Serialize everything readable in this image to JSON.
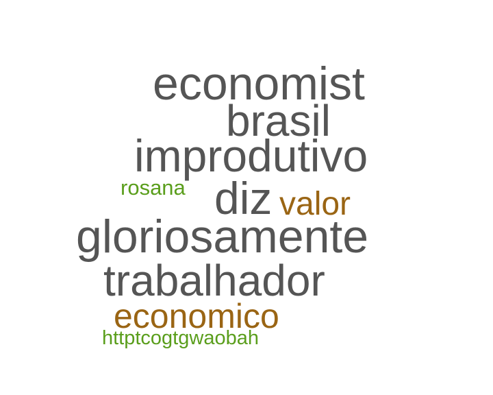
{
  "words": {
    "economist": {
      "text": "economist",
      "color": "#555555"
    },
    "brasil": {
      "text": "brasil",
      "color": "#555555"
    },
    "improdutivo": {
      "text": "improdutivo",
      "color": "#555555"
    },
    "rosana": {
      "text": "rosana",
      "color": "#5a9e1c"
    },
    "diz": {
      "text": "diz",
      "color": "#555555"
    },
    "valor": {
      "text": "valor",
      "color": "#9a6514"
    },
    "gloriosamente": {
      "text": "gloriosamente",
      "color": "#555555"
    },
    "trabalhador": {
      "text": "trabalhador",
      "color": "#555555"
    },
    "economico": {
      "text": "economico",
      "color": "#9a6514"
    },
    "httptcogtgwaobah": {
      "text": "httptcogtgwaobah",
      "color": "#5a9e1c"
    }
  }
}
